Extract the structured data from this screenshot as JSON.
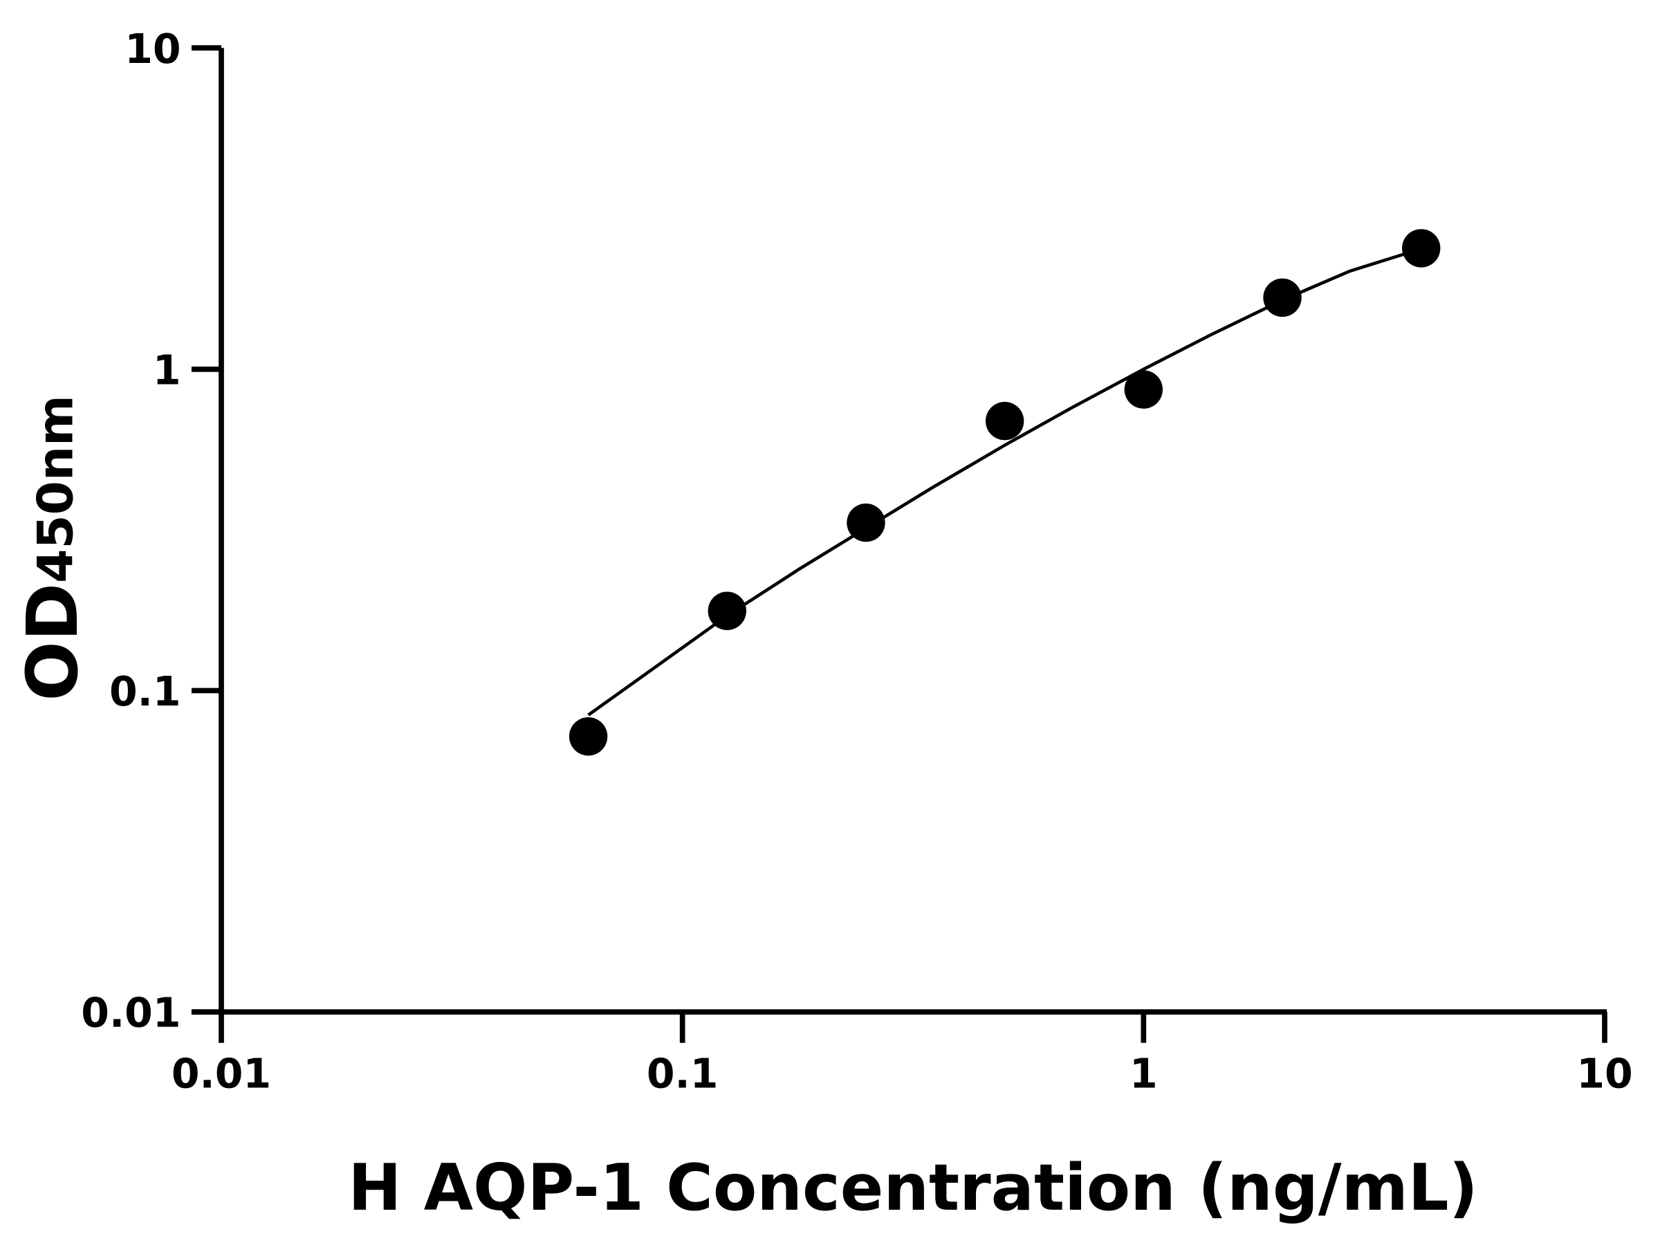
{
  "chart_data": {
    "type": "scatter",
    "title": "",
    "xlabel": "H AQP-1 Concentration (ng/mL)",
    "ylabel": {
      "main": "OD",
      "subscript": "450nm"
    },
    "xscale": "log",
    "yscale": "log",
    "xlim": [
      0.01,
      10
    ],
    "ylim": [
      0.01,
      10
    ],
    "xticks": [
      {
        "value": 0.01,
        "label": "0.01"
      },
      {
        "value": 0.1,
        "label": "0.1"
      },
      {
        "value": 1,
        "label": "1"
      },
      {
        "value": 10,
        "label": "10"
      }
    ],
    "yticks": [
      {
        "value": 0.01,
        "label": "0.01"
      },
      {
        "value": 0.1,
        "label": "0.1"
      },
      {
        "value": 1,
        "label": "1"
      },
      {
        "value": 10,
        "label": "10"
      }
    ],
    "grid": false,
    "legend": "none",
    "points": [
      {
        "x": 0.0625,
        "y": 0.072
      },
      {
        "x": 0.125,
        "y": 0.177
      },
      {
        "x": 0.25,
        "y": 0.333
      },
      {
        "x": 0.5,
        "y": 0.69
      },
      {
        "x": 1,
        "y": 0.865
      },
      {
        "x": 2,
        "y": 1.67
      },
      {
        "x": 4,
        "y": 2.38
      }
    ],
    "fit_curve": [
      {
        "x": 0.0625,
        "y": 0.084
      },
      {
        "x": 0.09,
        "y": 0.122
      },
      {
        "x": 0.125,
        "y": 0.171
      },
      {
        "x": 0.18,
        "y": 0.24
      },
      {
        "x": 0.25,
        "y": 0.32
      },
      {
        "x": 0.35,
        "y": 0.43
      },
      {
        "x": 0.5,
        "y": 0.58
      },
      {
        "x": 0.7,
        "y": 0.76
      },
      {
        "x": 1,
        "y": 1.0
      },
      {
        "x": 1.4,
        "y": 1.28
      },
      {
        "x": 2,
        "y": 1.64
      },
      {
        "x": 2.8,
        "y": 2.02
      },
      {
        "x": 4,
        "y": 2.37
      }
    ],
    "colors": {
      "marker": "#000000",
      "line": "#000000",
      "axis": "#000000"
    }
  }
}
